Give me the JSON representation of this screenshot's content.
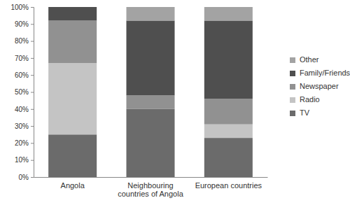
{
  "chart_data": {
    "type": "bar",
    "stacked": true,
    "legend": "right",
    "grid": false,
    "categories": [
      "Angola",
      "Neighbouring countries of Angola",
      "European countries"
    ],
    "series": [
      {
        "name": "TV",
        "color": "#6b6b6b",
        "values": [
          25,
          40,
          23
        ]
      },
      {
        "name": "Radio",
        "color": "#c4c4c4",
        "values": [
          42,
          0,
          8
        ]
      },
      {
        "name": "Newspaper",
        "color": "#919191",
        "values": [
          25,
          8,
          15
        ]
      },
      {
        "name": "Family/Friends",
        "color": "#4f4f4f",
        "values": [
          8,
          44,
          46
        ]
      },
      {
        "name": "Other",
        "color": "#a3a3a3",
        "values": [
          0,
          8,
          8
        ]
      }
    ],
    "ylim": [
      0,
      100
    ],
    "yticks": [
      {
        "value": 0,
        "label": "0%"
      },
      {
        "value": 10,
        "label": "10%"
      },
      {
        "value": 20,
        "label": "20%"
      },
      {
        "value": 30,
        "label": "30%"
      },
      {
        "value": 40,
        "label": "40%"
      },
      {
        "value": 50,
        "label": "50%"
      },
      {
        "value": 60,
        "label": "60%"
      },
      {
        "value": 70,
        "label": "70%"
      },
      {
        "value": 80,
        "label": "80%"
      },
      {
        "value": 90,
        "label": "90%"
      },
      {
        "value": 100,
        "label": "100%"
      }
    ]
  }
}
